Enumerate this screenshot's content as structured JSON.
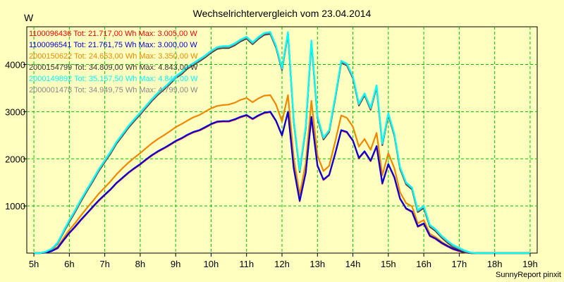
{
  "chart_data": {
    "type": "line",
    "title": "Wechselrichtervergleich vom 23.04.2014",
    "ylabel": "W",
    "xlabel": "",
    "footer": "SunnyReport pinxit",
    "xlim": [
      4.8,
      19.2
    ],
    "ylim": [
      0,
      4800
    ],
    "grid": true,
    "x_ticks": [
      5,
      6,
      7,
      8,
      9,
      10,
      11,
      12,
      13,
      14,
      15,
      16,
      17,
      18,
      19
    ],
    "x_tick_labels": [
      "5h",
      "6h",
      "7h",
      "8h",
      "9h",
      "10h",
      "11h",
      "12h",
      "13h",
      "14h",
      "15h",
      "16h",
      "17h",
      "18h",
      "19h"
    ],
    "y_ticks": [
      1000,
      2000,
      3000,
      4000
    ],
    "y_tick_labels": [
      "1000",
      "2000",
      "3000",
      "4000"
    ],
    "legend_position": "top-left",
    "x": [
      5,
      5.17,
      5.33,
      5.5,
      5.67,
      5.83,
      6,
      6.17,
      6.33,
      6.5,
      6.67,
      6.83,
      7,
      7.17,
      7.33,
      7.5,
      7.67,
      7.83,
      8,
      8.17,
      8.33,
      8.5,
      8.67,
      8.83,
      9,
      9.17,
      9.33,
      9.5,
      9.67,
      9.83,
      10,
      10.17,
      10.33,
      10.5,
      10.67,
      10.83,
      11,
      11.17,
      11.33,
      11.5,
      11.67,
      11.83,
      12,
      12.17,
      12.33,
      12.5,
      12.67,
      12.83,
      13,
      13.17,
      13.33,
      13.5,
      13.67,
      13.83,
      14,
      14.17,
      14.33,
      14.5,
      14.67,
      14.83,
      15,
      15.17,
      15.33,
      15.5,
      15.67,
      15.83,
      16,
      16.17,
      16.33,
      16.5,
      16.67,
      16.83,
      17,
      17.17,
      17.33,
      17.5,
      17.67,
      17.83,
      18,
      18.17,
      18.33,
      18.5,
      18.67,
      18.83,
      19
    ],
    "series": [
      {
        "name": "1100096436",
        "legend": "1100096436 Tot: 21.717,00 Wh Max: 3.005,00 W",
        "color": "#ff0000",
        "values": [
          0,
          0,
          10,
          40,
          100,
          260,
          420,
          560,
          700,
          840,
          980,
          1110,
          1230,
          1350,
          1480,
          1590,
          1700,
          1790,
          1880,
          1980,
          2070,
          2150,
          2220,
          2290,
          2370,
          2430,
          2500,
          2560,
          2600,
          2660,
          2730,
          2780,
          2790,
          2790,
          2830,
          2880,
          2920,
          2840,
          2910,
          2970,
          2990,
          2800,
          2490,
          2990,
          1800,
          1100,
          1700,
          2880,
          1850,
          1550,
          1650,
          2100,
          2600,
          2560,
          2380,
          2010,
          2150,
          1950,
          2260,
          1470,
          1880,
          1600,
          1150,
          940,
          870,
          560,
          620,
          360,
          300,
          210,
          140,
          80,
          40,
          10,
          0,
          0,
          0,
          0,
          0,
          0,
          0,
          0,
          0,
          0,
          0
        ]
      },
      {
        "name": "1100096541",
        "legend": "1100096541 Tot: 21.761,75 Wh Max: 3.000,00 W",
        "color": "#0000dd",
        "values": [
          0,
          0,
          10,
          40,
          110,
          270,
          430,
          570,
          710,
          850,
          990,
          1120,
          1240,
          1360,
          1490,
          1600,
          1710,
          1800,
          1890,
          1990,
          2080,
          2160,
          2230,
          2300,
          2380,
          2440,
          2510,
          2570,
          2610,
          2670,
          2740,
          2790,
          2800,
          2800,
          2840,
          2890,
          2930,
          2850,
          2920,
          2980,
          3000,
          2810,
          2500,
          3000,
          1810,
          1110,
          1710,
          2890,
          1860,
          1560,
          1660,
          2110,
          2610,
          2570,
          2390,
          2020,
          2160,
          1960,
          2270,
          1480,
          1890,
          1610,
          1160,
          950,
          880,
          570,
          630,
          370,
          310,
          220,
          150,
          90,
          50,
          15,
          0,
          0,
          0,
          0,
          0,
          0,
          0,
          0,
          0,
          0,
          0
        ]
      },
      {
        "name": "2000150622",
        "legend": "2000150622 Tot: 24.653,00 Wh Max: 3.350,00 W",
        "color": "#ee8800",
        "values": [
          0,
          0,
          20,
          60,
          130,
          310,
          490,
          640,
          800,
          960,
          1110,
          1260,
          1390,
          1530,
          1670,
          1800,
          1920,
          2020,
          2120,
          2230,
          2330,
          2420,
          2500,
          2580,
          2670,
          2740,
          2810,
          2880,
          2930,
          3000,
          3070,
          3120,
          3140,
          3150,
          3190,
          3250,
          3290,
          3200,
          3280,
          3340,
          3350,
          3150,
          2790,
          3350,
          2020,
          1240,
          1910,
          3230,
          2070,
          1740,
          1850,
          2360,
          2920,
          2870,
          2680,
          2260,
          2420,
          2190,
          2550,
          1650,
          2120,
          1800,
          1290,
          1060,
          990,
          630,
          700,
          410,
          340,
          240,
          160,
          100,
          50,
          15,
          0,
          0,
          0,
          0,
          0,
          0,
          0,
          0,
          0,
          0,
          0
        ]
      },
      {
        "name": "2000154799",
        "legend": "2000154799 Tot: 34.809,00 Wh Max: 4.843,00 W",
        "color": "#333333",
        "values": [
          0,
          0,
          20,
          80,
          200,
          430,
          660,
          880,
          1100,
          1320,
          1530,
          1740,
          1930,
          2120,
          2320,
          2490,
          2660,
          2800,
          2940,
          3090,
          3230,
          3360,
          3470,
          3580,
          3710,
          3800,
          3910,
          3990,
          4070,
          4150,
          4250,
          4330,
          4350,
          4350,
          4410,
          4490,
          4550,
          4430,
          4540,
          4630,
          4650,
          4360,
          3880,
          4650,
          2800,
          1720,
          2650,
          4470,
          2870,
          2410,
          2570,
          3270,
          4040,
          3980,
          3710,
          3130,
          3350,
          3040,
          3520,
          2290,
          2930,
          2490,
          1790,
          1460,
          1350,
          870,
          960,
          560,
          470,
          330,
          220,
          130,
          70,
          20,
          0,
          0,
          0,
          0,
          0,
          0,
          0,
          0,
          0,
          0,
          0
        ]
      },
      {
        "name": "2000149892",
        "legend": "2000149892 Tot: 35.157,50 Wh Max: 4.842,00 W",
        "color": "#00ffff",
        "values": [
          0,
          0,
          30,
          90,
          220,
          460,
          700,
          920,
          1140,
          1360,
          1570,
          1780,
          1970,
          2160,
          2360,
          2530,
          2700,
          2840,
          2980,
          3130,
          3270,
          3400,
          3510,
          3620,
          3750,
          3840,
          3950,
          4030,
          4110,
          4190,
          4290,
          4370,
          4390,
          4390,
          4450,
          4530,
          4590,
          4470,
          4580,
          4670,
          4690,
          4400,
          3920,
          4690,
          2840,
          1760,
          2690,
          4510,
          2910,
          2450,
          2610,
          3310,
          4080,
          4020,
          3750,
          3170,
          3390,
          3080,
          3560,
          2330,
          2970,
          2530,
          1830,
          1500,
          1390,
          910,
          1000,
          600,
          510,
          370,
          260,
          170,
          110,
          50,
          10,
          0,
          0,
          0,
          0,
          0,
          0,
          0,
          0,
          0,
          0
        ]
      },
      {
        "name": "2000001478",
        "legend": "2000001478 Tot: 34.949,75 Wh Max: 4.799,00 W",
        "color": "#888888",
        "values": [
          0,
          0,
          25,
          85,
          210,
          445,
          680,
          900,
          1120,
          1340,
          1550,
          1760,
          1950,
          2140,
          2340,
          2510,
          2680,
          2820,
          2960,
          3110,
          3250,
          3380,
          3490,
          3600,
          3730,
          3820,
          3930,
          4010,
          4090,
          4170,
          4270,
          4350,
          4370,
          4370,
          4430,
          4510,
          4570,
          4450,
          4560,
          4650,
          4670,
          4380,
          3900,
          4670,
          2820,
          1740,
          2670,
          4490,
          2890,
          2430,
          2590,
          3290,
          4060,
          4000,
          3730,
          3150,
          3370,
          3060,
          3540,
          2310,
          2950,
          2510,
          1810,
          1480,
          1370,
          890,
          980,
          580,
          490,
          350,
          240,
          150,
          90,
          35,
          5,
          0,
          0,
          0,
          0,
          0,
          0,
          0,
          0,
          0,
          0
        ]
      }
    ]
  }
}
